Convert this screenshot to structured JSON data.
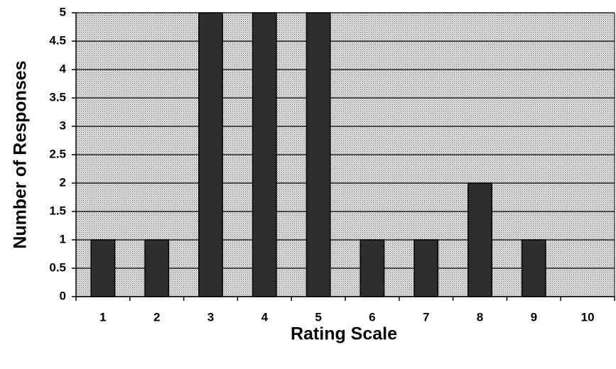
{
  "chart_data": {
    "type": "bar",
    "x_label": "Rating Scale",
    "y_label": "Number of Responses",
    "categories": [
      "1",
      "2",
      "3",
      "4",
      "5",
      "6",
      "7",
      "8",
      "9",
      "10"
    ],
    "values": [
      1,
      1,
      5,
      5,
      5,
      1,
      1,
      2,
      1,
      0
    ],
    "color": "#2e2e2e",
    "ylim": [
      0,
      5
    ],
    "yticks": [
      0,
      0.5,
      1,
      1.5,
      2,
      2.5,
      3,
      3.5,
      4,
      4.5,
      5
    ],
    "grid": true
  }
}
